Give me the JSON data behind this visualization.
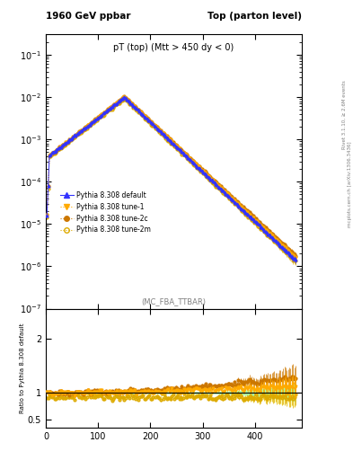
{
  "title_left": "1960 GeV ppbar",
  "title_right": "Top (parton level)",
  "plot_title": "pT (top) (Mtt > 450 dy < 0)",
  "watermark": "(MC_FBA_TTBAR)",
  "right_label_top": "Rivet 3.1.10, ≥ 2.6M events",
  "right_label_bot": "mcplots.cern.ch [arXiv:1306.3436]",
  "ylabel_ratio": "Ratio to Pythia 8.308 default",
  "xlim": [
    0,
    490
  ],
  "ylim_main": [
    1e-07,
    0.3
  ],
  "ylim_ratio": [
    0.35,
    2.55
  ],
  "ratio_yticks": [
    0.5,
    1.0,
    2.0
  ],
  "colors": {
    "default": "#3333ff",
    "tune1": "#ffaa00",
    "tune2c": "#cc7700",
    "tune2m": "#ddaa00"
  },
  "band_colors": {
    "yellow": "#ffff80",
    "green": "#80ff80"
  },
  "legend": [
    {
      "label": "Pythia 8.308 default",
      "color": "#3333ff",
      "marker": "^",
      "ls": "-",
      "fillstyle": "full"
    },
    {
      "label": "Pythia 8.308 tune-1",
      "color": "#ffaa00",
      "marker": "v",
      "ls": ":",
      "fillstyle": "full"
    },
    {
      "label": "Pythia 8.308 tune-2c",
      "color": "#cc7700",
      "marker": "o",
      "ls": ":",
      "fillstyle": "full"
    },
    {
      "label": "Pythia 8.308 tune-2m",
      "color": "#ddaa00",
      "marker": "o",
      "ls": ":",
      "fillstyle": "none"
    }
  ]
}
